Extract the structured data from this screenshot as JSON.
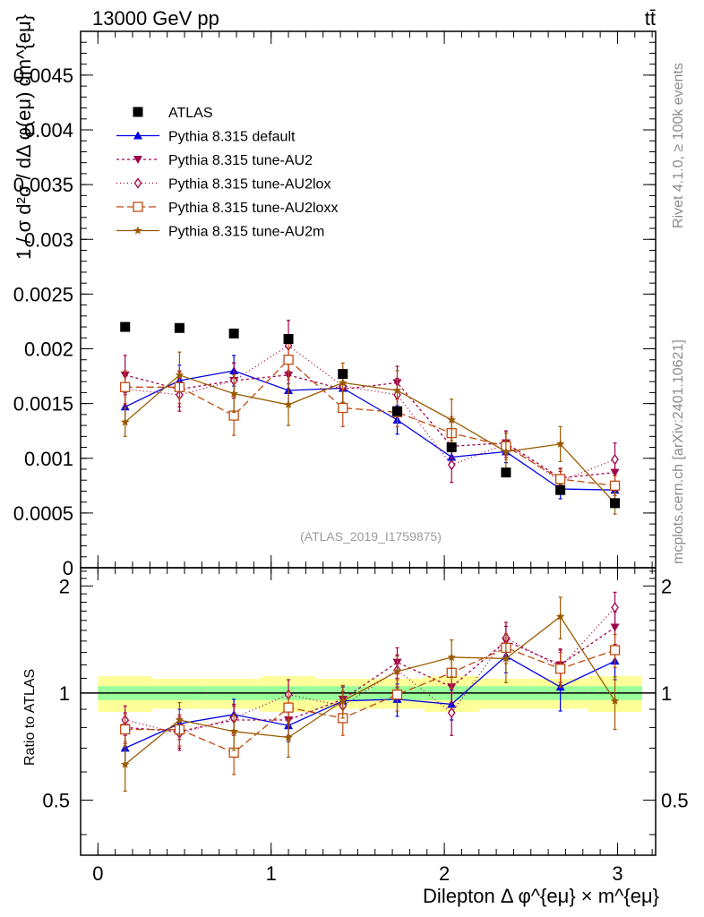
{
  "header": {
    "left_title": "13000 GeV pp",
    "right_title": "tt̄"
  },
  "side_labels": {
    "rivet": "Rivet 4.1.0, ≥ 100k events",
    "mcplots": "mcplots.cern.ch [arXiv:2401.10621]"
  },
  "analysis_label": "(ATLAS_2019_I1759875)",
  "chart_data": {
    "type": "line",
    "title": "13000 GeV pp",
    "xlabel": "Dilepton Δ φ^{eμ} × m^{eμ}",
    "ylabel": "1 / σ  d²σ / dΔ φ(eμ) dm^{eμ}",
    "ratio_ylabel": "Ratio to ATLAS",
    "xlim": [
      -0.1,
      3.22
    ],
    "ylim": [
      0,
      0.0049
    ],
    "ratio_ylim": [
      0.35,
      2.25
    ],
    "xticks": [
      0,
      1,
      2,
      3
    ],
    "xtick_labels": [
      "0",
      "1",
      "2",
      "3"
    ],
    "yticks": [
      0,
      0.0005,
      0.001,
      0.0015,
      0.002,
      0.0025,
      0.003,
      0.0035,
      0.004,
      0.0045
    ],
    "ytick_labels": [
      "0",
      "0.0005",
      "0.001",
      "0.0015",
      "0.002",
      "0.0025",
      "0.003",
      "0.0035",
      "0.004",
      "0.0045"
    ],
    "ratio_yticks": [
      0.5,
      1,
      2
    ],
    "ratio_ytick_labels": [
      "0.5",
      "1",
      "2"
    ],
    "x": [
      0.157,
      0.471,
      0.785,
      1.1,
      1.414,
      1.728,
      2.042,
      2.356,
      2.67,
      2.985
    ],
    "data": {
      "name": "ATLAS",
      "color": "#000000",
      "values": [
        0.0022,
        0.00219,
        0.00214,
        0.00209,
        0.00177,
        0.00143,
        0.0011,
        0.00087,
        0.00071,
        0.00059
      ]
    },
    "series": [
      {
        "name": "Pythia 8.315 default",
        "color": "#0000e6",
        "marker": "triangle-up",
        "dash": "",
        "values": [
          0.00147,
          0.00171,
          0.0018,
          0.00162,
          0.00164,
          0.00135,
          0.00101,
          0.00106,
          0.00072,
          0.00071
        ],
        "errors": [
          0.00013,
          0.00014,
          0.00014,
          0.00014,
          0.00013,
          0.00013,
          0.0001,
          0.0001,
          9e-05,
          8e-05
        ],
        "ratio": [
          0.7,
          0.82,
          0.87,
          0.81,
          0.95,
          0.96,
          0.93,
          1.27,
          1.04,
          1.23
        ],
        "ratio_errors": [
          0.07,
          0.08,
          0.09,
          0.08,
          0.09,
          0.1,
          0.09,
          0.13,
          0.15,
          0.14
        ]
      },
      {
        "name": "Pythia 8.315 tune-AU2",
        "color": "#a0004a",
        "marker": "triangle-down",
        "dash": "3,3",
        "values": [
          0.00176,
          0.00163,
          0.00171,
          0.00176,
          0.00163,
          0.00169,
          0.00111,
          0.00114,
          0.00082,
          0.00087
        ],
        "errors": [
          0.00018,
          0.00016,
          0.00016,
          0.00016,
          0.00015,
          0.00015,
          0.00011,
          0.00011,
          9e-05,
          9e-05
        ],
        "ratio": [
          0.8,
          0.78,
          0.84,
          0.84,
          0.96,
          1.22,
          1.04,
          1.4,
          1.2,
          1.53
        ],
        "ratio_errors": [
          0.08,
          0.08,
          0.08,
          0.08,
          0.09,
          0.12,
          0.1,
          0.14,
          0.13,
          0.16
        ]
      },
      {
        "name": "Pythia 8.315 tune-AU2lox",
        "color": "#a0004a",
        "marker": "diamond",
        "dash": "1,3",
        "values": [
          0.00163,
          0.00158,
          0.00171,
          0.00203,
          0.00166,
          0.00158,
          0.00094,
          0.00113,
          0.00079,
          0.00099
        ],
        "errors": [
          0.00015,
          0.00015,
          0.00016,
          0.00023,
          0.00015,
          0.00015,
          0.00016,
          0.00012,
          9e-05,
          0.00015
        ],
        "ratio": [
          0.84,
          0.77,
          0.85,
          0.99,
          0.92,
          1.16,
          0.88,
          1.43,
          1.18,
          1.74
        ],
        "ratio_errors": [
          0.08,
          0.08,
          0.08,
          0.1,
          0.09,
          0.12,
          0.12,
          0.15,
          0.14,
          0.18
        ]
      },
      {
        "name": "Pythia 8.315 tune-AU2loxx",
        "color": "#c04a10",
        "marker": "square-open",
        "dash": "8,4",
        "values": [
          0.00165,
          0.00165,
          0.00139,
          0.0019,
          0.00146,
          0.00142,
          0.00123,
          0.00111,
          0.00081,
          0.00075
        ],
        "errors": [
          0.00015,
          0.00015,
          0.00018,
          0.00018,
          0.00017,
          0.00013,
          0.00015,
          0.00012,
          9e-05,
          9e-05
        ],
        "ratio": [
          0.79,
          0.79,
          0.68,
          0.91,
          0.85,
          0.99,
          1.14,
          1.34,
          1.17,
          1.32
        ],
        "ratio_errors": [
          0.08,
          0.08,
          0.09,
          0.1,
          0.09,
          0.1,
          0.11,
          0.13,
          0.13,
          0.14
        ]
      },
      {
        "name": "Pythia 8.315 tune-AU2m",
        "color": "#9a5b00",
        "marker": "star",
        "dash": "",
        "values": [
          0.00133,
          0.00176,
          0.00159,
          0.00149,
          0.00169,
          0.00162,
          0.00135,
          0.00106,
          0.00113,
          0.00059
        ],
        "errors": [
          0.00013,
          0.00021,
          0.00017,
          0.00019,
          0.00018,
          0.00018,
          0.00019,
          0.00017,
          0.00016,
          0.0001
        ],
        "ratio": [
          0.63,
          0.84,
          0.78,
          0.75,
          0.95,
          1.15,
          1.26,
          1.25,
          1.64,
          0.95
        ],
        "ratio_errors": [
          0.1,
          0.1,
          0.09,
          0.09,
          0.1,
          0.12,
          0.15,
          0.18,
          0.22,
          0.16
        ]
      }
    ]
  }
}
